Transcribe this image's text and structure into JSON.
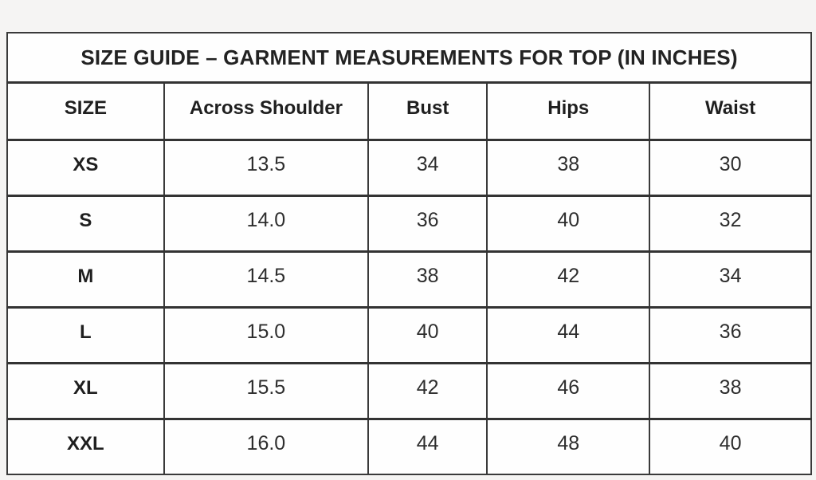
{
  "colors": {
    "page_background": "#f5f4f3",
    "cell_background": "#fefefe",
    "border": "#3a3a3a",
    "text": "#222222"
  },
  "chart_data": {
    "type": "table",
    "title": "SIZE GUIDE – GARMENT MEASUREMENTS FOR TOP (IN INCHES)",
    "columns": [
      "SIZE",
      "Across Shoulder",
      "Bust",
      "Hips",
      "Waist"
    ],
    "rows": [
      [
        "XS",
        "13.5",
        "34",
        "38",
        "30"
      ],
      [
        "S",
        "14.0",
        "36",
        "40",
        "32"
      ],
      [
        "M",
        "14.5",
        "38",
        "42",
        "34"
      ],
      [
        "L",
        "15.0",
        "40",
        "44",
        "36"
      ],
      [
        "XL",
        "15.5",
        "42",
        "46",
        "38"
      ],
      [
        "XXL",
        "16.0",
        "44",
        "48",
        "40"
      ]
    ],
    "layout": {
      "grid": true,
      "all_cells_centered": true,
      "units": "inches"
    }
  }
}
